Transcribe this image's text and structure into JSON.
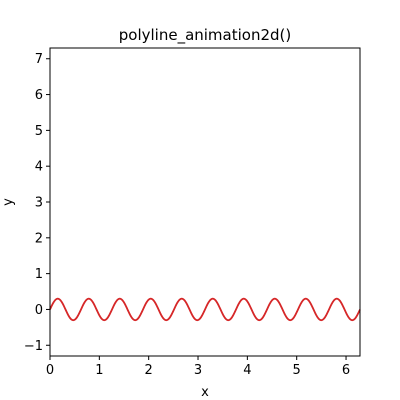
{
  "chart_data": {
    "type": "line",
    "title": "polyline_animation2d()",
    "xlabel": "x",
    "ylabel": "y",
    "xlim": [
      0,
      6.283
    ],
    "ylim": [
      -1.3,
      7.3
    ],
    "x_ticks": [
      "0",
      "1",
      "2",
      "3",
      "4",
      "5",
      "6"
    ],
    "y_ticks": [
      "−1",
      "0",
      "1",
      "2",
      "3",
      "4",
      "5",
      "6",
      "7"
    ],
    "grid": false,
    "series": [
      {
        "function": "0.3*sin(10*x)",
        "amplitude": 0.3,
        "angular_frequency": 10,
        "x_range": [
          0,
          6.283
        ],
        "color": "#d62728"
      }
    ]
  }
}
